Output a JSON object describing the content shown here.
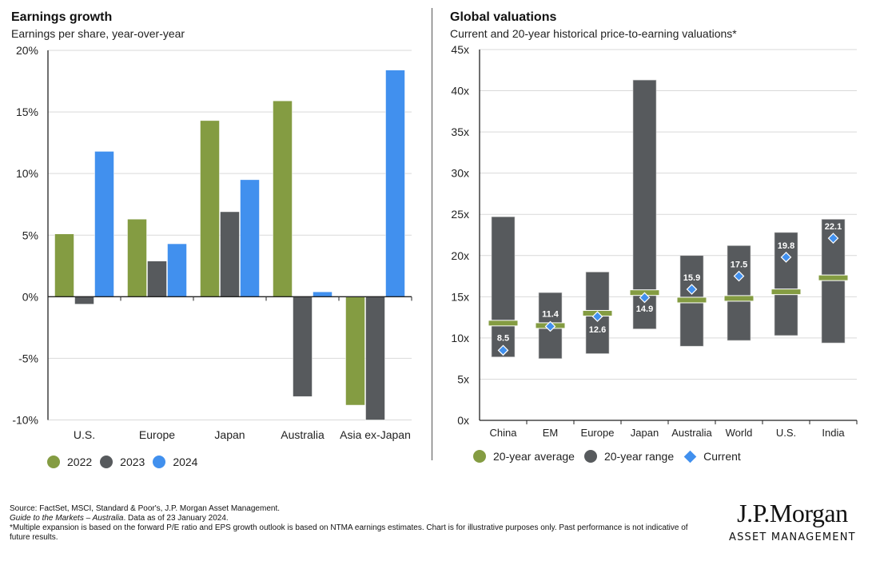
{
  "colors": {
    "green": "#849C42",
    "grey": "#575A5D",
    "blue": "#4190EE",
    "grid": "#D9D9D9",
    "axis": "#222222"
  },
  "left": {
    "title": "Earnings growth",
    "subtitle": "Earnings per share, year-over-year"
  },
  "right": {
    "title": "Global valuations",
    "subtitle": "Current and 20-year historical price-to-earning valuations*"
  },
  "chart_data": [
    {
      "type": "bar",
      "title": "Earnings growth",
      "subtitle": "Earnings per share, year-over-year",
      "xlabel": "",
      "ylabel": "",
      "categories": [
        "U.S.",
        "Europe",
        "Japan",
        "Australia",
        "Asia ex-Japan"
      ],
      "series": [
        {
          "name": "2022",
          "color": "#849C42",
          "values": [
            5.1,
            6.3,
            14.3,
            15.9,
            -8.8
          ]
        },
        {
          "name": "2023",
          "color": "#575A5D",
          "values": [
            -0.6,
            2.9,
            6.9,
            -8.1,
            -10.0
          ]
        },
        {
          "name": "2024",
          "color": "#4190EE",
          "values": [
            11.8,
            4.3,
            9.5,
            0.4,
            18.4
          ]
        }
      ],
      "ylim": [
        -10,
        20
      ],
      "yticks": [
        -10,
        -5,
        0,
        5,
        10,
        15,
        20
      ],
      "ytick_labels": [
        "-10%",
        "-5%",
        "0%",
        "5%",
        "10%",
        "15%",
        "20%"
      ],
      "grid": true,
      "legend": "bottom-left"
    },
    {
      "type": "range-bar",
      "title": "Global valuations",
      "subtitle": "Current and 20-year historical price-to-earning valuations*",
      "categories": [
        "China",
        "EM",
        "Europe",
        "Japan",
        "Australia",
        "World",
        "U.S.",
        "India"
      ],
      "range_low": [
        7.7,
        7.5,
        8.1,
        11.1,
        9.0,
        9.7,
        10.3,
        9.4
      ],
      "range_high": [
        24.7,
        15.5,
        18.0,
        41.3,
        20.0,
        21.2,
        22.8,
        24.4
      ],
      "average": [
        11.8,
        11.5,
        13.0,
        15.5,
        14.6,
        14.8,
        15.6,
        17.3
      ],
      "current": [
        8.5,
        11.4,
        12.6,
        14.9,
        15.9,
        17.5,
        19.8,
        22.1
      ],
      "current_labels": [
        "8.5",
        "11.4",
        "12.6",
        "14.9",
        "15.9",
        "17.5",
        "19.8",
        "22.1"
      ],
      "series_names": {
        "average": "20-year average",
        "range": "20-year range",
        "current": "Current"
      },
      "ylim": [
        0,
        45
      ],
      "yticks": [
        0,
        5,
        10,
        15,
        20,
        25,
        30,
        35,
        40,
        45
      ],
      "ytick_labels": [
        "0x",
        "5x",
        "10x",
        "15x",
        "20x",
        "25x",
        "30x",
        "35x",
        "40x",
        "45x"
      ],
      "grid": true,
      "legend": "bottom-left"
    }
  ],
  "legend_left": [
    {
      "label": "2022",
      "color": "#849C42"
    },
    {
      "label": "2023",
      "color": "#575A5D"
    },
    {
      "label": "2024",
      "color": "#4190EE"
    }
  ],
  "legend_right": [
    {
      "label": "20-year average",
      "color": "#849C42",
      "shape": "circle"
    },
    {
      "label": "20-year range",
      "color": "#575A5D",
      "shape": "circle"
    },
    {
      "label": "Current",
      "color": "#4190EE",
      "shape": "diamond"
    }
  ],
  "footer": {
    "source": "Source: FactSet, MSCI, Standard & Poor's, J.P. Morgan Asset Management.",
    "guide_italic": "Guide to the Markets – Australia",
    "guide_rest": ". Data as of 23 January 2024.",
    "note": "*Multiple expansion is based on the forward P/E ratio and EPS growth outlook is based on NTMA earnings estimates. Chart is for illustrative purposes only. Past performance is not indicative of future results."
  },
  "logo": {
    "brand": "J.P.Morgan",
    "tagline": "ASSET MANAGEMENT"
  }
}
